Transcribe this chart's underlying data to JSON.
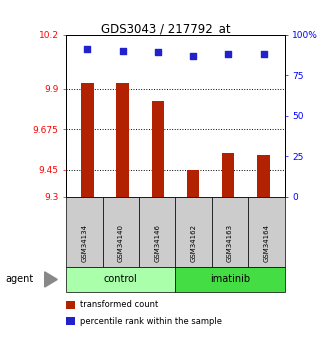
{
  "title": "GDS3043 / 217792_at",
  "categories": [
    "GSM34134",
    "GSM34140",
    "GSM34146",
    "GSM34162",
    "GSM34163",
    "GSM34164"
  ],
  "bar_values": [
    9.93,
    9.93,
    9.83,
    9.45,
    9.54,
    9.53
  ],
  "percentile_values": [
    91,
    90,
    89,
    87,
    88,
    88
  ],
  "bar_color": "#B22200",
  "dot_color": "#2222CC",
  "ylim_left": [
    9.3,
    10.2
  ],
  "ylim_right": [
    0,
    100
  ],
  "yticks_left": [
    9.3,
    9.45,
    9.675,
    9.9,
    10.2
  ],
  "ytick_labels_left": [
    "9.3",
    "9.45",
    "9.675",
    "9.9",
    "10.2"
  ],
  "yticks_right": [
    0,
    25,
    50,
    75,
    100
  ],
  "ytick_labels_right": [
    "0",
    "25",
    "50",
    "75",
    "100%"
  ],
  "hlines": [
    9.9,
    9.675,
    9.45
  ],
  "groups": [
    {
      "label": "control",
      "indices": [
        0,
        1,
        2
      ],
      "color": "#AAFFAA"
    },
    {
      "label": "imatinib",
      "indices": [
        3,
        4,
        5
      ],
      "color": "#44DD44"
    }
  ],
  "sample_box_color": "#CCCCCC",
  "agent_label": "agent",
  "legend_items": [
    {
      "label": "transformed count",
      "color": "#B22200"
    },
    {
      "label": "percentile rank within the sample",
      "color": "#2222CC"
    }
  ],
  "bar_width": 0.35
}
